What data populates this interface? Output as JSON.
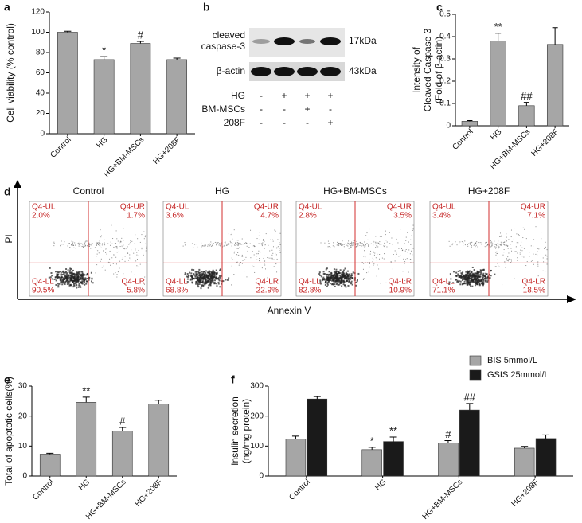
{
  "chart_data": [
    {
      "type": "bar",
      "panel": "a",
      "ylabel": [
        "Cell viability (% control)"
      ],
      "categories": [
        "Control",
        "HG",
        "HG+BM-MSCs",
        "HG+208F"
      ],
      "values": [
        100,
        73,
        89,
        73
      ],
      "errors": [
        1,
        3,
        2,
        1.5
      ],
      "markers": [
        null,
        "*",
        "#",
        null
      ],
      "color": "#a6a6a6",
      "ylim": [
        0,
        120
      ],
      "yticks": [
        0,
        20,
        40,
        60,
        80,
        100,
        120
      ]
    },
    {
      "type": "bar",
      "panel": "c",
      "ylabel": [
        "Intensity of",
        "Cleaved Caspase 3",
        "(Fold of β-actin)"
      ],
      "categories": [
        "Control",
        "HG",
        "HG+BM-MSCs",
        "HG+208F"
      ],
      "values": [
        0.02,
        0.38,
        0.09,
        0.365
      ],
      "errors": [
        0.003,
        0.035,
        0.015,
        0.075
      ],
      "markers": [
        null,
        "**",
        "##",
        null
      ],
      "color": "#a6a6a6",
      "ylim": [
        0,
        0.5
      ],
      "yticks": [
        0,
        0.1,
        0.2,
        0.3,
        0.4,
        0.5
      ]
    },
    {
      "type": "bar",
      "panel": "e",
      "ylabel": [
        "Total of apoptotic cells(%)"
      ],
      "categories": [
        "Control",
        "HG",
        "HG+BM-MSCs",
        "HG+208F"
      ],
      "values": [
        7.3,
        24.6,
        15,
        24
      ],
      "errors": [
        0.3,
        1.7,
        1.2,
        1.3
      ],
      "markers": [
        null,
        "**",
        "#",
        null
      ],
      "color": "#a6a6a6",
      "ylim": [
        0,
        30
      ],
      "yticks": [
        0,
        10,
        20,
        30
      ]
    },
    {
      "type": "grouped-bar",
      "panel": "f",
      "ylabel": [
        "Insulin secretion",
        "(ng/mg protein)"
      ],
      "categories": [
        "Control",
        "HG",
        "HG+BM-MSCs",
        "HG+208F"
      ],
      "series": [
        {
          "name": "BIS 5mmol/L",
          "color": "#a6a6a6",
          "values": [
            123,
            88,
            110,
            93
          ],
          "errors": [
            10,
            8,
            8,
            6
          ],
          "markers": [
            null,
            "*",
            "#",
            null
          ]
        },
        {
          "name": "GSIS 25mmol/L",
          "color": "#1a1a1a",
          "values": [
            257,
            115,
            220,
            125
          ],
          "errors": [
            8,
            15,
            22,
            12
          ],
          "markers": [
            null,
            "**",
            "##",
            null
          ]
        }
      ],
      "ylim": [
        0,
        300
      ],
      "yticks": [
        0,
        100,
        200,
        300
      ],
      "legend": "top-right"
    }
  ],
  "blot": {
    "panel": "b",
    "rows": [
      {
        "label": [
          "cleaved",
          "caspase-3"
        ],
        "size": "17kDa"
      },
      {
        "label": [
          "β-actin"
        ],
        "size": "43kDa"
      }
    ],
    "treatments": [
      {
        "name": "HG",
        "signs": [
          "-",
          "+",
          "+",
          "+"
        ]
      },
      {
        "name": "BM-MSCs",
        "signs": [
          "-",
          "-",
          "+",
          "-"
        ]
      },
      {
        "name": "208F",
        "signs": [
          "-",
          "-",
          "-",
          "+"
        ]
      }
    ]
  },
  "flow": {
    "panel": "d",
    "ylabel": "PI",
    "xlabel": "Annexin V",
    "plots": [
      {
        "title": "Control",
        "quadrants": [
          {
            "name": "Q4-UL",
            "value": "2.0%"
          },
          {
            "name": "Q4-UR",
            "value": "1.7%"
          },
          {
            "name": "Q4-LL",
            "value": "90.5%"
          },
          {
            "name": "Q4-LR",
            "value": "5.8%"
          }
        ]
      },
      {
        "title": "HG",
        "quadrants": [
          {
            "name": "Q4-UL",
            "value": "3.6%"
          },
          {
            "name": "Q4-UR",
            "value": "4.7%"
          },
          {
            "name": "Q4-LL",
            "value": "68.8%"
          },
          {
            "name": "Q4-LR",
            "value": "22.9%"
          }
        ]
      },
      {
        "title": "HG+BM-MSCs",
        "quadrants": [
          {
            "name": "Q4-UL",
            "value": "2.8%"
          },
          {
            "name": "Q4-UR",
            "value": "3.5%"
          },
          {
            "name": "Q4-LL",
            "value": "82.8%"
          },
          {
            "name": "Q4-LR",
            "value": "10.9%"
          }
        ]
      },
      {
        "title": "HG+208F",
        "quadrants": [
          {
            "name": "Q4-UL",
            "value": "3.4%"
          },
          {
            "name": "Q4-UR",
            "value": "7.1%"
          },
          {
            "name": "Q4-LL",
            "value": "71.1%"
          },
          {
            "name": "Q4-LR",
            "value": "18.5%"
          }
        ]
      }
    ]
  }
}
